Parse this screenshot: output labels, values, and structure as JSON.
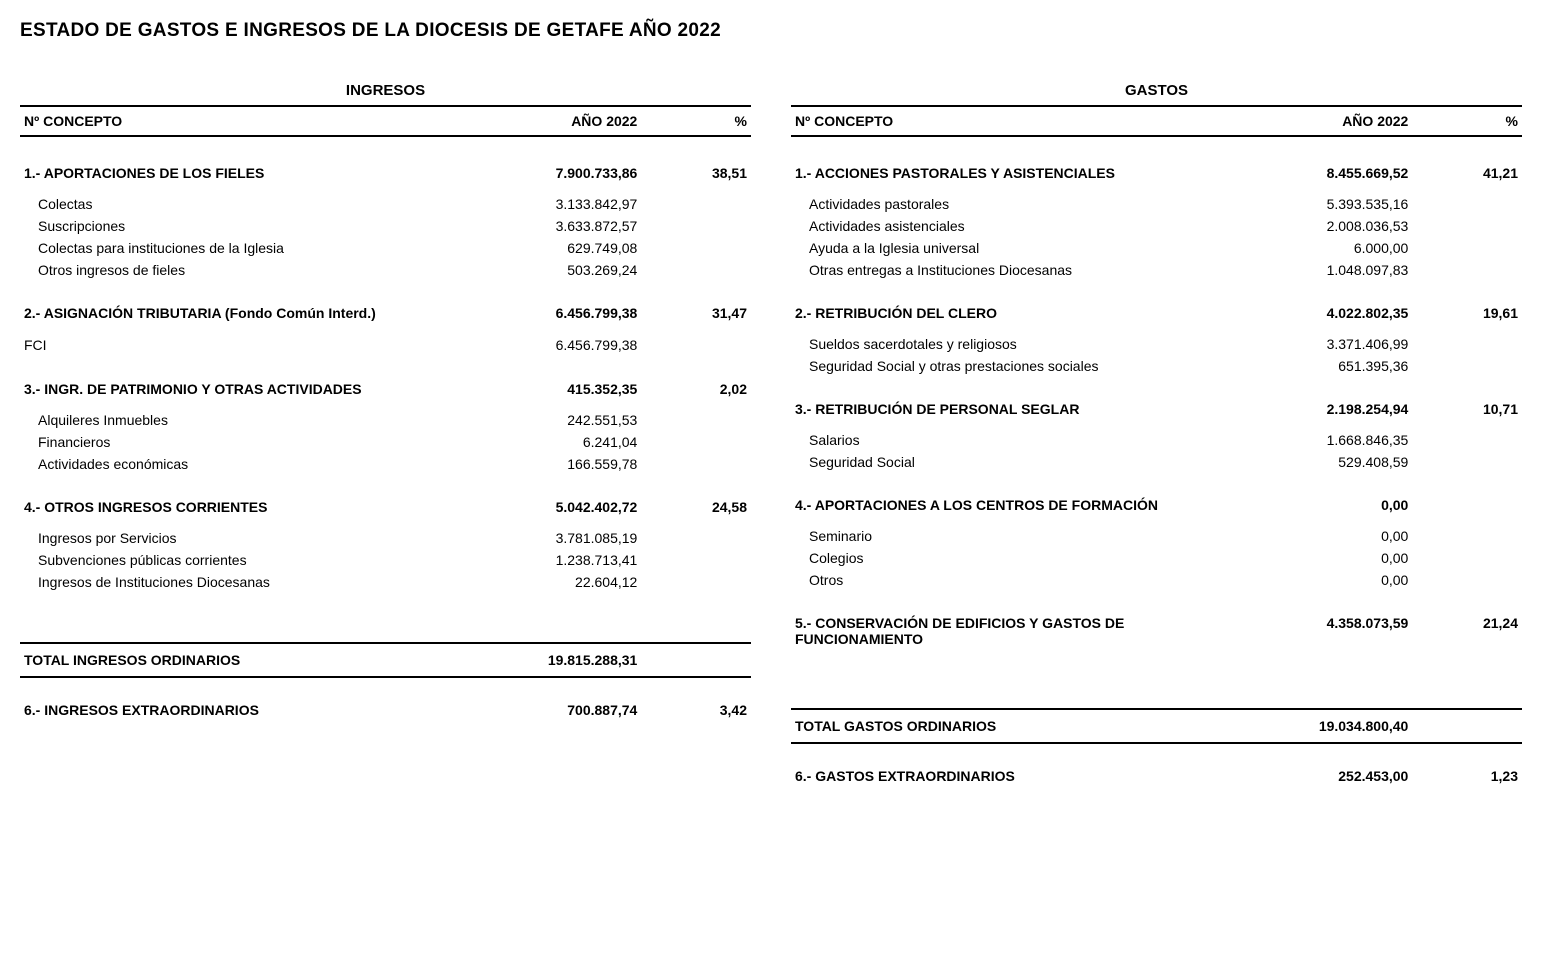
{
  "title": "ESTADO DE GASTOS E INGRESOS DE LA DIOCESIS DE GETAFE   AÑO 2022",
  "left": {
    "title": "INGRESOS",
    "headers": {
      "concepto": "Nº CONCEPTO",
      "ano": "AÑO 2022",
      "pct": "%"
    },
    "sections": [
      {
        "label": "1.- APORTACIONES DE LOS FIELES",
        "amount": "7.900.733,86",
        "pct": "38,51",
        "items": [
          {
            "label": "Colectas",
            "amount": "3.133.842,97"
          },
          {
            "label": "Suscripciones",
            "amount": "3.633.872,57"
          },
          {
            "label": "Colectas para instituciones de la Iglesia",
            "amount": "629.749,08"
          },
          {
            "label": "Otros ingresos de fieles",
            "amount": "503.269,24"
          }
        ]
      },
      {
        "label": "2.- ASIGNACIÓN TRIBUTARIA (Fondo Común Interd.)",
        "amount": "6.456.799,38",
        "pct": "31,47",
        "items": [
          {
            "label": "FCI",
            "amount": "6.456.799,38",
            "noindent": true
          }
        ]
      },
      {
        "label": "3.- INGR. DE PATRIMONIO Y OTRAS ACTIVIDADES",
        "amount": "415.352,35",
        "pct": "2,02",
        "items": [
          {
            "label": "Alquileres Inmuebles",
            "amount": "242.551,53"
          },
          {
            "label": "Financieros",
            "amount": "6.241,04"
          },
          {
            "label": "Actividades económicas",
            "amount": "166.559,78"
          }
        ]
      },
      {
        "label": "4.- OTROS INGRESOS CORRIENTES",
        "amount": "5.042.402,72",
        "pct": "24,58",
        "items": [
          {
            "label": "Ingresos por Servicios",
            "amount": "3.781.085,19"
          },
          {
            "label": "Subvenciones públicas corrientes",
            "amount": "1.238.713,41"
          },
          {
            "label": "Ingresos de Instituciones Diocesanas",
            "amount": "22.604,12"
          }
        ]
      }
    ],
    "total": {
      "label": "TOTAL INGRESOS ORDINARIOS",
      "amount": "19.815.288,31"
    },
    "extra": {
      "label": "6.- INGRESOS EXTRAORDINARIOS",
      "amount": "700.887,74",
      "pct": "3,42"
    }
  },
  "right": {
    "title": "GASTOS",
    "headers": {
      "concepto": "Nº CONCEPTO",
      "ano": "AÑO 2022",
      "pct": "%"
    },
    "sections": [
      {
        "label": "1.- ACCIONES PASTORALES Y ASISTENCIALES",
        "amount": "8.455.669,52",
        "pct": "41,21",
        "items": [
          {
            "label": "Actividades pastorales",
            "amount": "5.393.535,16"
          },
          {
            "label": "Actividades asistenciales",
            "amount": "2.008.036,53"
          },
          {
            "label": "Ayuda a la Iglesia universal",
            "amount": "6.000,00"
          },
          {
            "label": "Otras entregas a Instituciones Diocesanas",
            "amount": "1.048.097,83"
          }
        ]
      },
      {
        "label": "2.- RETRIBUCIÓN DEL CLERO",
        "amount": "4.022.802,35",
        "pct": "19,61",
        "items": [
          {
            "label": "Sueldos sacerdotales y religiosos",
            "amount": "3.371.406,99"
          },
          {
            "label": "Seguridad Social y otras prestaciones sociales",
            "amount": "651.395,36"
          }
        ]
      },
      {
        "label": "3.- RETRIBUCIÓN DE PERSONAL SEGLAR",
        "amount": "2.198.254,94",
        "pct": "10,71",
        "items": [
          {
            "label": "Salarios",
            "amount": "1.668.846,35"
          },
          {
            "label": "Seguridad Social",
            "amount": "529.408,59"
          }
        ]
      },
      {
        "label": "4.- APORTACIONES A LOS CENTROS DE FORMACIÓN",
        "amount": "0,00",
        "pct": "",
        "items": [
          {
            "label": "Seminario",
            "amount": "0,00"
          },
          {
            "label": "Colegios",
            "amount": "0,00"
          },
          {
            "label": "Otros",
            "amount": "0,00"
          }
        ]
      },
      {
        "label": "5.- CONSERVACIÓN DE EDIFICIOS Y GASTOS DE FUNCIONAMIENTO",
        "amount": "4.358.073,59",
        "pct": "21,24",
        "items": []
      }
    ],
    "total": {
      "label": "TOTAL GASTOS ORDINARIOS",
      "amount": "19.034.800,40"
    },
    "extra": {
      "label": "6.- GASTOS EXTRAORDINARIOS",
      "amount": "252.453,00",
      "pct": "1,23"
    }
  }
}
